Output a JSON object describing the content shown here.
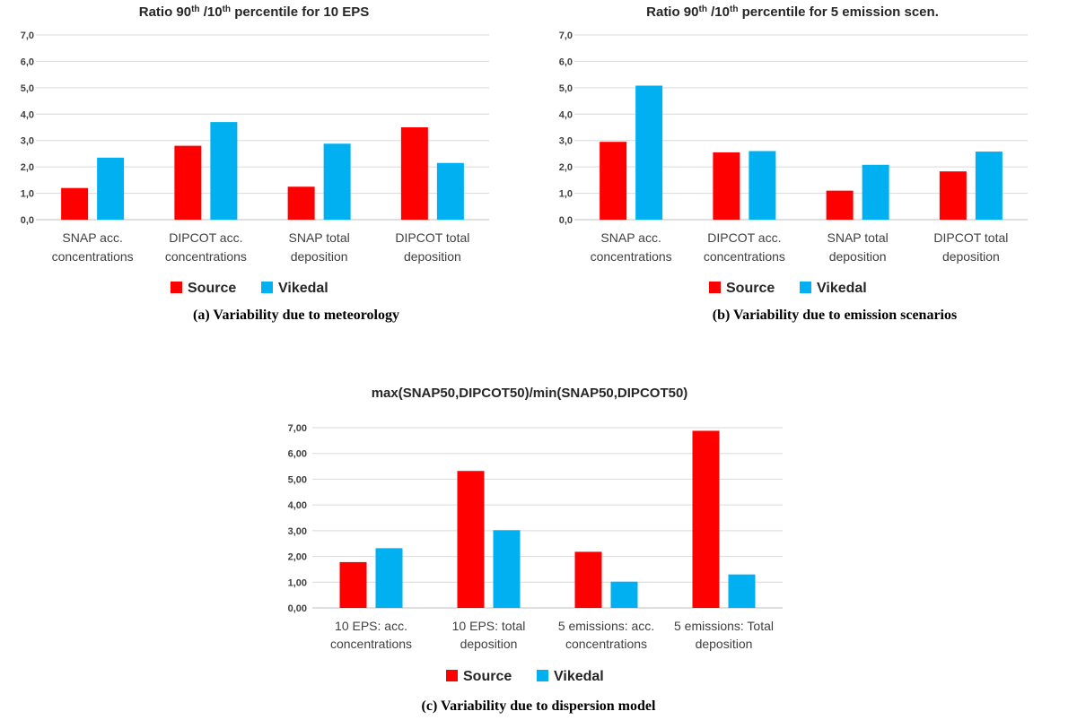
{
  "colors": {
    "source": "#ff0000",
    "vikedal": "#00b0f0",
    "grid": "#d9d9d9"
  },
  "chart_data": [
    {
      "id": "a",
      "type": "bar",
      "title": {
        "pre": "Ratio 90",
        "sup1": "th",
        "mid": " /10",
        "sup2": "th",
        "post": " percentile for 10 EPS"
      },
      "categories": [
        [
          "SNAP acc.",
          "concentrations"
        ],
        [
          "DIPCOT acc.",
          "concentrations"
        ],
        [
          "SNAP total",
          "deposition"
        ],
        [
          "DIPCOT total",
          "deposition"
        ]
      ],
      "series": [
        {
          "name": "Source",
          "color": "#ff0000",
          "values": [
            1.2,
            2.8,
            1.25,
            3.5
          ]
        },
        {
          "name": "Vikedal",
          "color": "#00b0f0",
          "values": [
            2.35,
            3.7,
            2.88,
            2.15
          ]
        }
      ],
      "ylim": [
        0,
        7
      ],
      "yticks": [
        "0,0",
        "1,0",
        "2,0",
        "3,0",
        "4,0",
        "5,0",
        "6,0",
        "7,0"
      ],
      "grid": true,
      "legend": "bottom",
      "caption": "(a) Variability due to meteorology"
    },
    {
      "id": "b",
      "type": "bar",
      "title": {
        "pre": "Ratio 90",
        "sup1": "th",
        "mid": " /10",
        "sup2": "th",
        "post": " percentile for 5 emission scen."
      },
      "categories": [
        [
          "SNAP acc.",
          "concentrations"
        ],
        [
          "DIPCOT acc.",
          "concentrations"
        ],
        [
          "SNAP total",
          "deposition"
        ],
        [
          "DIPCOT total",
          "deposition"
        ]
      ],
      "series": [
        {
          "name": "Source",
          "color": "#ff0000",
          "values": [
            2.95,
            2.55,
            1.1,
            1.83
          ]
        },
        {
          "name": "Vikedal",
          "color": "#00b0f0",
          "values": [
            5.08,
            2.6,
            2.08,
            2.58
          ]
        }
      ],
      "ylim": [
        0,
        7
      ],
      "yticks": [
        "0,0",
        "1,0",
        "2,0",
        "3,0",
        "4,0",
        "5,0",
        "6,0",
        "7,0"
      ],
      "grid": true,
      "legend": "bottom",
      "caption": "(b) Variability due to emission scenarios"
    },
    {
      "id": "c",
      "type": "bar",
      "title": {
        "pre": "max(SNAP50,DIPCOT50)/min(SNAP50,DIPCOT50)",
        "sup1": "",
        "mid": "",
        "sup2": "",
        "post": ""
      },
      "categories": [
        [
          "10 EPS: acc.",
          "concentrations"
        ],
        [
          "10 EPS: total",
          "deposition"
        ],
        [
          "5 emissions: acc.",
          "concentrations"
        ],
        [
          "5 emissions: Total",
          "deposition"
        ]
      ],
      "series": [
        {
          "name": "Source",
          "color": "#ff0000",
          "values": [
            1.78,
            5.32,
            2.18,
            6.88
          ]
        },
        {
          "name": "Vikedal",
          "color": "#00b0f0",
          "values": [
            2.32,
            3.02,
            1.02,
            1.3
          ]
        }
      ],
      "ylim": [
        0,
        7
      ],
      "yticks": [
        "0,00",
        "1,00",
        "2,00",
        "3,00",
        "4,00",
        "5,00",
        "6,00",
        "7,00"
      ],
      "grid": true,
      "legend": "bottom",
      "caption": "(c) Variability due to dispersion model"
    }
  ]
}
